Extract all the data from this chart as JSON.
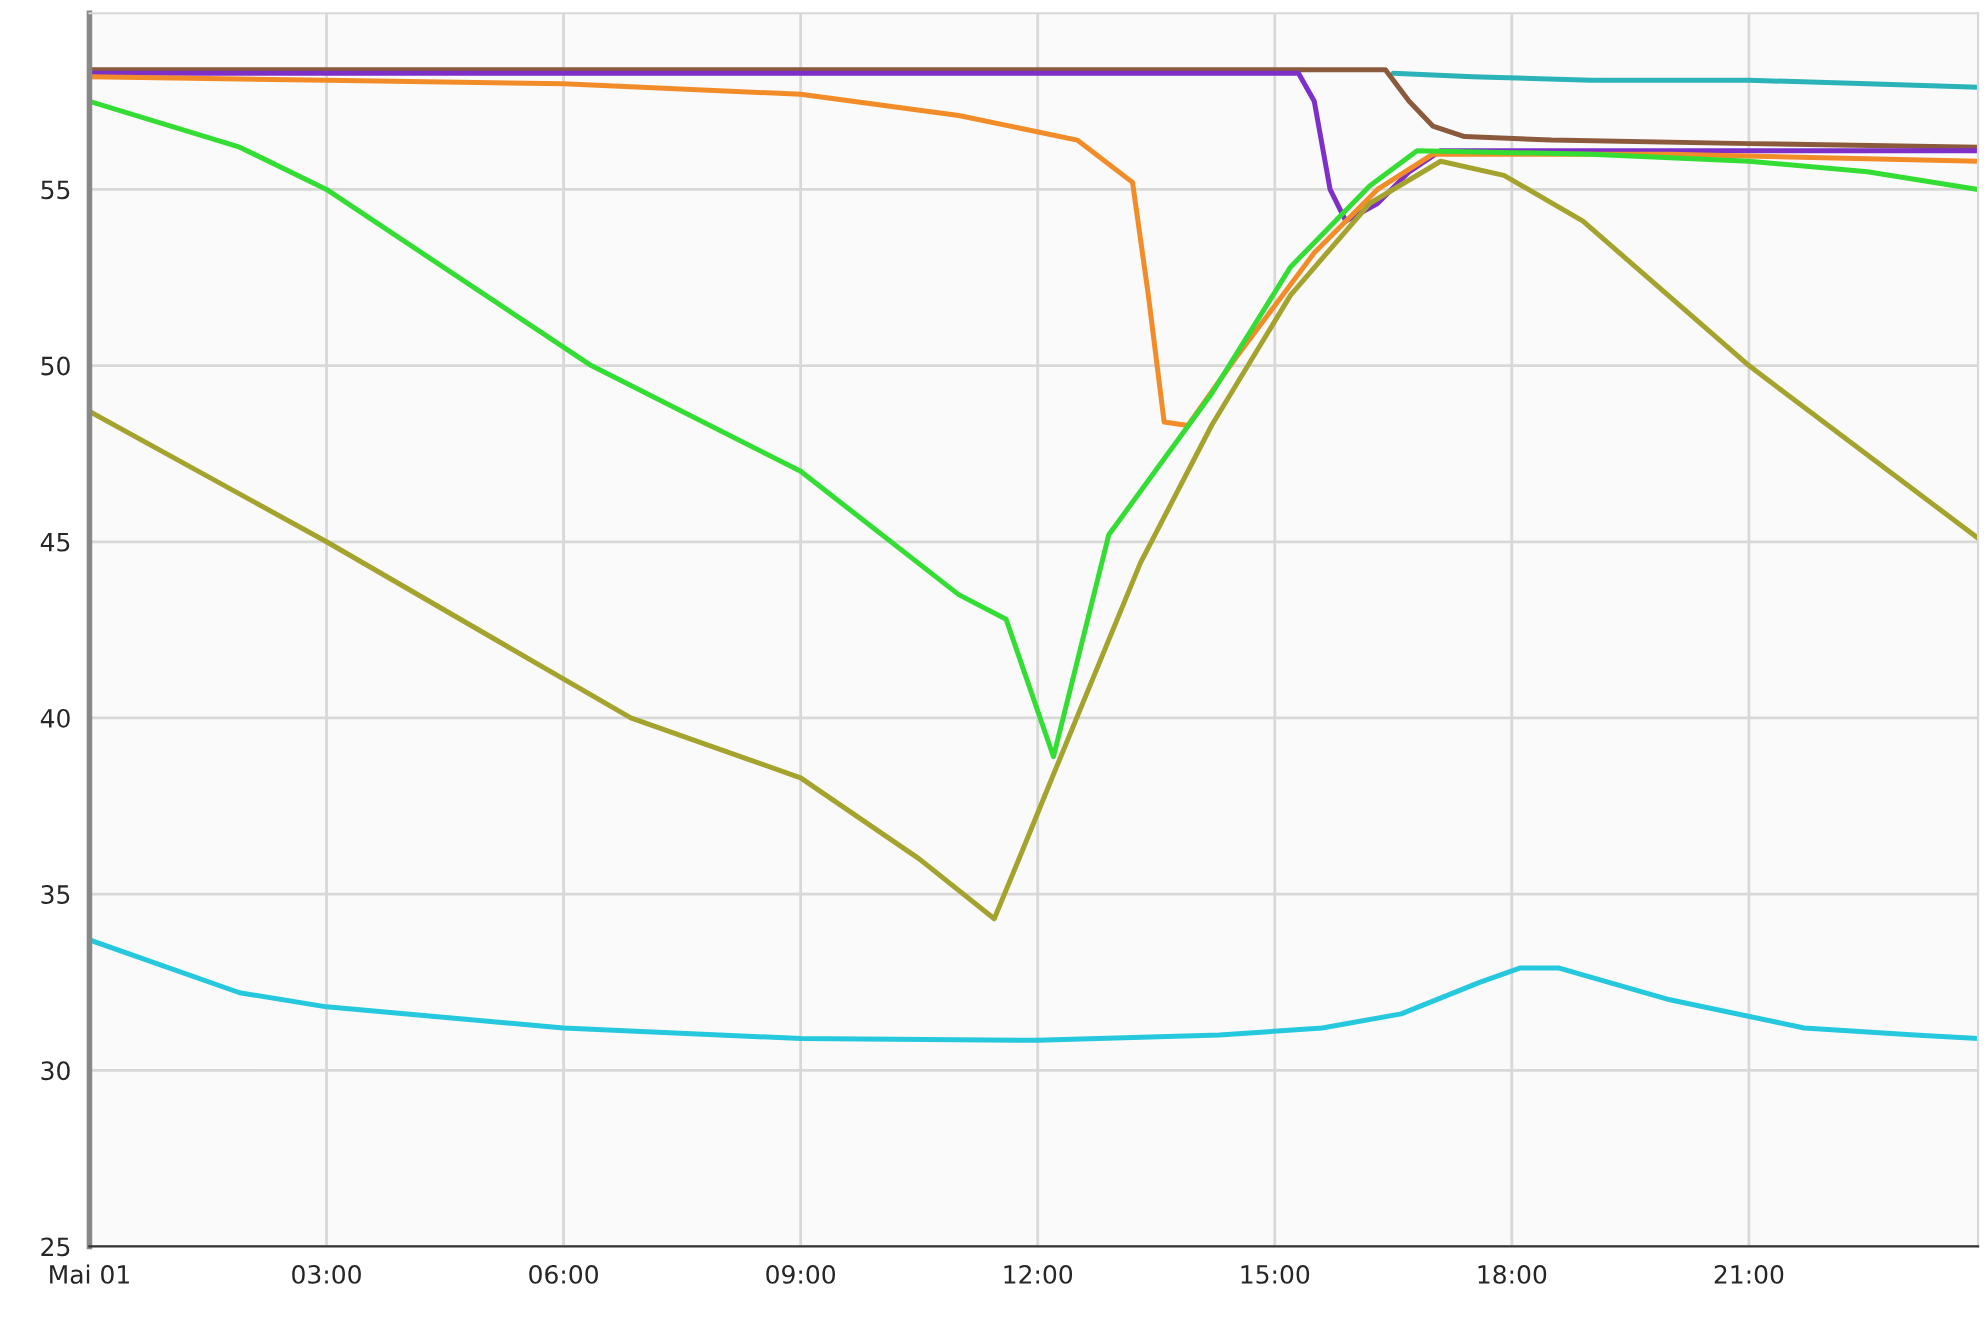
{
  "chart_data": {
    "type": "line",
    "series": [
      {
        "color": "#2ab3b8",
        "x": [
          16.5,
          17.5,
          19,
          21,
          22.5,
          23.9
        ],
        "values": [
          58.3,
          58.2,
          58.1,
          58.1,
          58.0,
          57.9
        ]
      },
      {
        "color": "#8b5a3c",
        "x": [
          0,
          4,
          8,
          12,
          16.4,
          16.7,
          17.0,
          17.4,
          18.5,
          21,
          23.9
        ],
        "values": [
          58.4,
          58.4,
          58.4,
          58.4,
          58.4,
          57.5,
          56.8,
          56.5,
          56.4,
          56.3,
          56.2
        ]
      },
      {
        "color": "#7d2fc8",
        "x": [
          0,
          4,
          8,
          12,
          15.3,
          15.5,
          15.7,
          15.9,
          16.3,
          16.7,
          17.1,
          20,
          23.9
        ],
        "values": [
          58.3,
          58.3,
          58.3,
          58.3,
          58.3,
          57.5,
          55.0,
          54.1,
          54.6,
          55.5,
          56.1,
          56.1,
          56.1
        ]
      },
      {
        "color": "#f28c28",
        "x": [
          0,
          3,
          6,
          9,
          11,
          12.5,
          13.2,
          13.4,
          13.6,
          13.9,
          14.5,
          15.5,
          16.3,
          17.0,
          20,
          23.9
        ],
        "values": [
          58.2,
          58.1,
          58.0,
          57.7,
          57.1,
          56.4,
          55.2,
          52.0,
          48.4,
          48.3,
          50.2,
          53.2,
          55.0,
          56.0,
          56.0,
          55.8
        ]
      },
      {
        "color": "#33dd33",
        "x": [
          0,
          1.9,
          3,
          6.35,
          9,
          11,
          11.6,
          12.2,
          12.9,
          14.2,
          15.2,
          16.2,
          16.8,
          19,
          21,
          22.5,
          23.9
        ],
        "values": [
          57.5,
          56.2,
          55.0,
          50.0,
          47.0,
          43.5,
          42.8,
          38.9,
          45.2,
          49.2,
          52.8,
          55.1,
          56.1,
          56.0,
          55.8,
          55.5,
          55.0
        ]
      },
      {
        "color": "#a4a32e",
        "x": [
          0,
          3,
          6.85,
          9,
          10.5,
          11.45,
          11.8,
          12.2,
          13.3,
          14.2,
          15.2,
          16.2,
          17.1,
          17.9,
          18.9,
          21,
          23.9
        ],
        "values": [
          48.7,
          45.0,
          40.0,
          38.3,
          36.0,
          34.3,
          36.2,
          38.4,
          44.4,
          48.3,
          52.0,
          54.6,
          55.8,
          55.4,
          54.1,
          50.0,
          45.1
        ]
      },
      {
        "color": "#25c8dc",
        "x": [
          0,
          1.9,
          3,
          6,
          9,
          12,
          14.3,
          15.6,
          16.6,
          17.6,
          18.1,
          18.6,
          20,
          21.7,
          23.1,
          23.9
        ],
        "values": [
          33.7,
          32.2,
          31.8,
          31.2,
          30.9,
          30.85,
          31.0,
          31.2,
          31.6,
          32.5,
          32.9,
          32.9,
          32.0,
          31.2,
          31.0,
          30.9
        ]
      }
    ],
    "xlim": [
      0,
      23.9
    ],
    "xticks": [
      {
        "value": 0,
        "label": "Mai 01"
      },
      {
        "value": 3,
        "label": "03:00"
      },
      {
        "value": 6,
        "label": "06:00"
      },
      {
        "value": 9,
        "label": "09:00"
      },
      {
        "value": 12,
        "label": "12:00"
      },
      {
        "value": 15,
        "label": "15:00"
      },
      {
        "value": 18,
        "label": "18:00"
      },
      {
        "value": 21,
        "label": "21:00"
      }
    ],
    "ylim": [
      25,
      60
    ],
    "yticks": [
      25,
      30,
      35,
      40,
      45,
      50,
      55
    ],
    "grid": true,
    "legend": false,
    "marker": "none",
    "line_style": "solid"
  }
}
